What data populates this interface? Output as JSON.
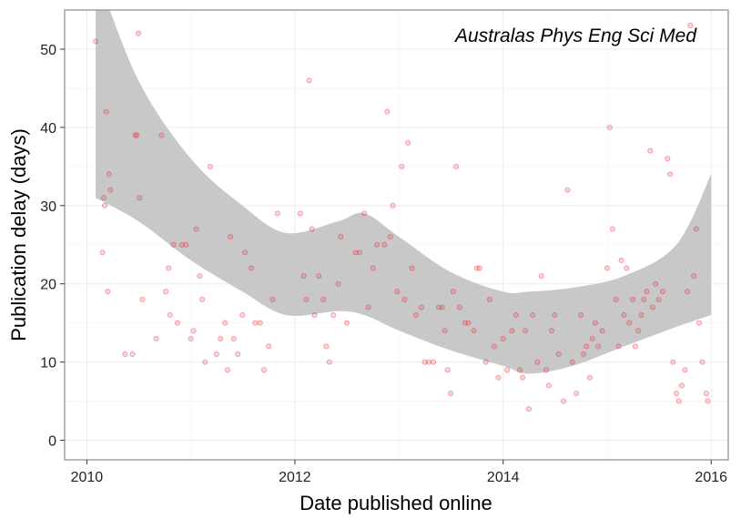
{
  "chart_data": {
    "type": "scatter",
    "title": "Australas Phys Eng Sci Med",
    "xlabel": "Date published online",
    "ylabel": "Publication delay (days)",
    "xlim": [
      "2009-10-15",
      "2016-03-01"
    ],
    "ylim": [
      -2.5,
      55
    ],
    "x_ticks": [
      "2010-01-01",
      "2012-01-01",
      "2014-01-01",
      "2016-01-01"
    ],
    "x_tick_labels": [
      "2010",
      "2012",
      "2014",
      "2016"
    ],
    "y_ticks": [
      0,
      10,
      20,
      30,
      40,
      50
    ],
    "y_tick_labels": [
      "0",
      "10",
      "20",
      "30",
      "40",
      "50"
    ],
    "grid": true,
    "colors": {
      "points": "#e8202a",
      "ribbon": "#c8c8c8",
      "panel_border": "#8c8c8c",
      "grid": "#ebebeb"
    },
    "confidence_band": {
      "x": [
        "2010-02-01",
        "2010-07-01",
        "2011-01-01",
        "2011-07-01",
        "2011-12-01",
        "2012-06-01",
        "2012-09-01",
        "2013-01-01",
        "2013-07-01",
        "2014-01-01",
        "2014-04-01",
        "2014-09-01",
        "2015-03-01",
        "2015-09-01",
        "2016-01-01"
      ],
      "upper": [
        60,
        46,
        36,
        30,
        26.5,
        28,
        29,
        26,
        21.5,
        19,
        19,
        19.5,
        21,
        25,
        34
      ],
      "lower": [
        31,
        28,
        23,
        19,
        16,
        16.5,
        16,
        14,
        11.5,
        9.5,
        8.5,
        9.5,
        12,
        14.5,
        16
      ]
    },
    "points": [
      {
        "x": "2010-02-01",
        "y": 51
      },
      {
        "x": "2010-03-01",
        "y": 31
      },
      {
        "x": "2010-03-05",
        "y": 30
      },
      {
        "x": "2010-03-10",
        "y": 42
      },
      {
        "x": "2010-03-20",
        "y": 34
      },
      {
        "x": "2010-03-25",
        "y": 32
      },
      {
        "x": "2010-03-15",
        "y": 19
      },
      {
        "x": "2010-02-25",
        "y": 24
      },
      {
        "x": "2010-05-15",
        "y": 11
      },
      {
        "x": "2010-06-10",
        "y": 11
      },
      {
        "x": "2010-06-20",
        "y": 39
      },
      {
        "x": "2010-06-25",
        "y": 39
      },
      {
        "x": "2010-07-01",
        "y": 52
      },
      {
        "x": "2010-07-05",
        "y": 31
      },
      {
        "x": "2010-07-15",
        "y": 18
      },
      {
        "x": "2010-09-01",
        "y": 13
      },
      {
        "x": "2010-09-20",
        "y": 39
      },
      {
        "x": "2010-10-05",
        "y": 19
      },
      {
        "x": "2010-10-15",
        "y": 22
      },
      {
        "x": "2010-10-20",
        "y": 16
      },
      {
        "x": "2010-11-01",
        "y": 25
      },
      {
        "x": "2010-11-15",
        "y": 15
      },
      {
        "x": "2010-12-01",
        "y": 25
      },
      {
        "x": "2010-12-15",
        "y": 25
      },
      {
        "x": "2011-01-01",
        "y": 13
      },
      {
        "x": "2011-01-10",
        "y": 14
      },
      {
        "x": "2011-01-20",
        "y": 27
      },
      {
        "x": "2011-02-01",
        "y": 21
      },
      {
        "x": "2011-02-10",
        "y": 18
      },
      {
        "x": "2011-02-20",
        "y": 10
      },
      {
        "x": "2011-03-10",
        "y": 35
      },
      {
        "x": "2011-04-01",
        "y": 11
      },
      {
        "x": "2011-04-15",
        "y": 13
      },
      {
        "x": "2011-05-01",
        "y": 15
      },
      {
        "x": "2011-05-10",
        "y": 9
      },
      {
        "x": "2011-05-20",
        "y": 26
      },
      {
        "x": "2011-06-01",
        "y": 13
      },
      {
        "x": "2011-06-15",
        "y": 11
      },
      {
        "x": "2011-07-01",
        "y": 16
      },
      {
        "x": "2011-07-10",
        "y": 24
      },
      {
        "x": "2011-08-01",
        "y": 22
      },
      {
        "x": "2011-08-15",
        "y": 15
      },
      {
        "x": "2011-09-01",
        "y": 15
      },
      {
        "x": "2011-09-15",
        "y": 9
      },
      {
        "x": "2011-10-01",
        "y": 12
      },
      {
        "x": "2011-10-15",
        "y": 18
      },
      {
        "x": "2011-11-01",
        "y": 29
      },
      {
        "x": "2012-01-20",
        "y": 29
      },
      {
        "x": "2012-02-01",
        "y": 21
      },
      {
        "x": "2012-02-10",
        "y": 18
      },
      {
        "x": "2012-02-20",
        "y": 46
      },
      {
        "x": "2012-03-01",
        "y": 27
      },
      {
        "x": "2012-03-10",
        "y": 16
      },
      {
        "x": "2012-03-25",
        "y": 21
      },
      {
        "x": "2012-04-10",
        "y": 18
      },
      {
        "x": "2012-04-20",
        "y": 12
      },
      {
        "x": "2012-05-01",
        "y": 10
      },
      {
        "x": "2012-05-15",
        "y": 16
      },
      {
        "x": "2012-06-01",
        "y": 20
      },
      {
        "x": "2012-06-10",
        "y": 26
      },
      {
        "x": "2012-07-01",
        "y": 15
      },
      {
        "x": "2012-08-01",
        "y": 24
      },
      {
        "x": "2012-08-15",
        "y": 24
      },
      {
        "x": "2012-09-01",
        "y": 29
      },
      {
        "x": "2012-09-15",
        "y": 17
      },
      {
        "x": "2012-10-01",
        "y": 22
      },
      {
        "x": "2012-10-15",
        "y": 25
      },
      {
        "x": "2012-11-10",
        "y": 25
      },
      {
        "x": "2012-11-20",
        "y": 42
      },
      {
        "x": "2012-12-01",
        "y": 26
      },
      {
        "x": "2012-12-10",
        "y": 30
      },
      {
        "x": "2012-12-25",
        "y": 19
      },
      {
        "x": "2013-01-10",
        "y": 35
      },
      {
        "x": "2013-01-20",
        "y": 18
      },
      {
        "x": "2013-02-01",
        "y": 38
      },
      {
        "x": "2013-02-15",
        "y": 22
      },
      {
        "x": "2013-03-01",
        "y": 16
      },
      {
        "x": "2013-03-20",
        "y": 17
      },
      {
        "x": "2013-04-01",
        "y": 10
      },
      {
        "x": "2013-04-15",
        "y": 10
      },
      {
        "x": "2013-05-01",
        "y": 10
      },
      {
        "x": "2013-05-20",
        "y": 17
      },
      {
        "x": "2013-06-01",
        "y": 17
      },
      {
        "x": "2013-06-10",
        "y": 14
      },
      {
        "x": "2013-06-20",
        "y": 9
      },
      {
        "x": "2013-07-01",
        "y": 6
      },
      {
        "x": "2013-07-10",
        "y": 19
      },
      {
        "x": "2013-07-20",
        "y": 35
      },
      {
        "x": "2013-08-01",
        "y": 17
      },
      {
        "x": "2013-08-20",
        "y": 15
      },
      {
        "x": "2013-09-01",
        "y": 15
      },
      {
        "x": "2013-09-20",
        "y": 14
      },
      {
        "x": "2013-10-01",
        "y": 22
      },
      {
        "x": "2013-10-10",
        "y": 22
      },
      {
        "x": "2013-11-01",
        "y": 10
      },
      {
        "x": "2013-11-15",
        "y": 18
      },
      {
        "x": "2013-12-01",
        "y": 12
      },
      {
        "x": "2013-12-15",
        "y": 8
      },
      {
        "x": "2014-01-01",
        "y": 13
      },
      {
        "x": "2014-01-15",
        "y": 9
      },
      {
        "x": "2014-02-01",
        "y": 14
      },
      {
        "x": "2014-02-15",
        "y": 16
      },
      {
        "x": "2014-03-01",
        "y": 9
      },
      {
        "x": "2014-03-10",
        "y": 8
      },
      {
        "x": "2014-03-20",
        "y": 14
      },
      {
        "x": "2014-04-01",
        "y": 4
      },
      {
        "x": "2014-04-15",
        "y": 16
      },
      {
        "x": "2014-05-01",
        "y": 10
      },
      {
        "x": "2014-05-15",
        "y": 21
      },
      {
        "x": "2014-06-01",
        "y": 9
      },
      {
        "x": "2014-06-10",
        "y": 7
      },
      {
        "x": "2014-06-20",
        "y": 14
      },
      {
        "x": "2014-07-01",
        "y": 16
      },
      {
        "x": "2014-07-15",
        "y": 11
      },
      {
        "x": "2014-08-01",
        "y": 5
      },
      {
        "x": "2014-08-15",
        "y": 32
      },
      {
        "x": "2014-09-01",
        "y": 10
      },
      {
        "x": "2014-09-15",
        "y": 6
      },
      {
        "x": "2014-10-01",
        "y": 16
      },
      {
        "x": "2014-10-10",
        "y": 11
      },
      {
        "x": "2014-10-20",
        "y": 12
      },
      {
        "x": "2014-11-01",
        "y": 8
      },
      {
        "x": "2014-11-10",
        "y": 13
      },
      {
        "x": "2014-11-20",
        "y": 15
      },
      {
        "x": "2014-12-01",
        "y": 12
      },
      {
        "x": "2014-12-15",
        "y": 14
      },
      {
        "x": "2015-01-01",
        "y": 22
      },
      {
        "x": "2015-01-10",
        "y": 40
      },
      {
        "x": "2015-01-20",
        "y": 27
      },
      {
        "x": "2015-02-01",
        "y": 18
      },
      {
        "x": "2015-02-10",
        "y": 12
      },
      {
        "x": "2015-02-20",
        "y": 23
      },
      {
        "x": "2015-03-01",
        "y": 16
      },
      {
        "x": "2015-03-10",
        "y": 22
      },
      {
        "x": "2015-03-20",
        "y": 15
      },
      {
        "x": "2015-04-01",
        "y": 18
      },
      {
        "x": "2015-04-10",
        "y": 12
      },
      {
        "x": "2015-04-20",
        "y": 14
      },
      {
        "x": "2015-05-01",
        "y": 16
      },
      {
        "x": "2015-05-10",
        "y": 18
      },
      {
        "x": "2015-05-20",
        "y": 19
      },
      {
        "x": "2015-06-01",
        "y": 37
      },
      {
        "x": "2015-06-10",
        "y": 17
      },
      {
        "x": "2015-06-20",
        "y": 20
      },
      {
        "x": "2015-07-01",
        "y": 18
      },
      {
        "x": "2015-07-15",
        "y": 19
      },
      {
        "x": "2015-08-01",
        "y": 36
      },
      {
        "x": "2015-08-10",
        "y": 34
      },
      {
        "x": "2015-08-20",
        "y": 10
      },
      {
        "x": "2015-09-01",
        "y": 6
      },
      {
        "x": "2015-09-10",
        "y": 5
      },
      {
        "x": "2015-09-20",
        "y": 7
      },
      {
        "x": "2015-10-01",
        "y": 9
      },
      {
        "x": "2015-10-10",
        "y": 19
      },
      {
        "x": "2015-10-20",
        "y": 53
      },
      {
        "x": "2015-11-01",
        "y": 21
      },
      {
        "x": "2015-11-10",
        "y": 27
      },
      {
        "x": "2015-11-20",
        "y": 15
      },
      {
        "x": "2015-12-01",
        "y": 10
      },
      {
        "x": "2015-12-15",
        "y": 6
      },
      {
        "x": "2015-12-20",
        "y": 5
      }
    ]
  }
}
